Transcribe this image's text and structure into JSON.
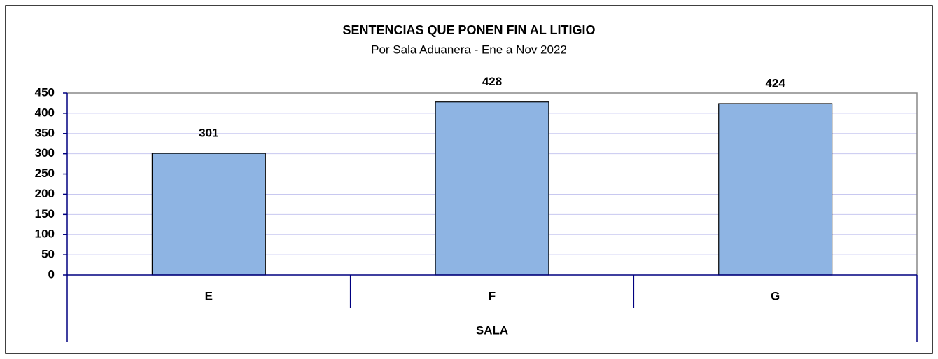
{
  "chart_data": {
    "type": "bar",
    "title": "SENTENCIAS QUE PONEN FIN AL LITIGIO",
    "subtitle": "Por Sala Aduanera - Ene a Nov 2022",
    "x_label": "SALA",
    "categories": [
      "E",
      "F",
      "G"
    ],
    "values": [
      301,
      428,
      424
    ],
    "color": "#8eb4e3",
    "ylim": [
      0,
      450
    ],
    "yticks": [
      0,
      50,
      100,
      150,
      200,
      250,
      300,
      350,
      400,
      450
    ],
    "grid": true
  }
}
